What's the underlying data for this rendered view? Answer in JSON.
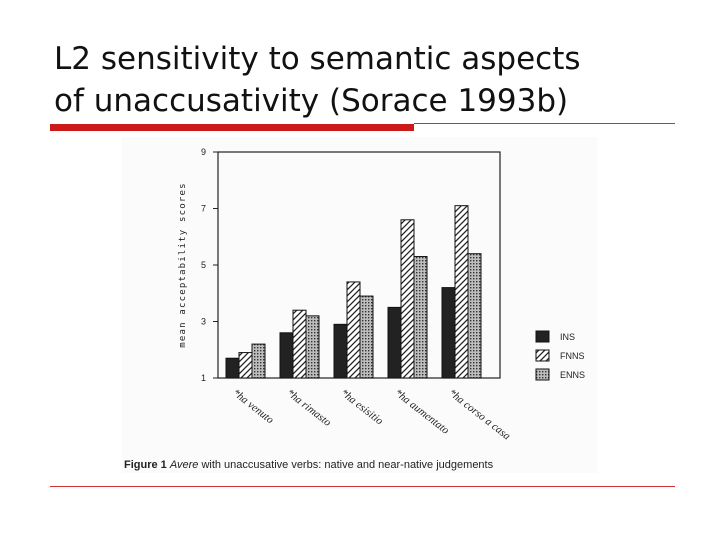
{
  "slide": {
    "title_line1": "L2 sensitivity to semantic aspects",
    "title_line2": "of unaccusativity (Sorace 1993b)",
    "accent_color": "#cc1a1a",
    "rule_color": "#cc3333"
  },
  "chart_data": {
    "type": "bar",
    "ylabel": "mean acceptability scores",
    "ylim": [
      1,
      9
    ],
    "yticks": [
      "1",
      "3",
      "5",
      "7",
      "9"
    ],
    "categories": [
      "*ha venuto",
      "*ha rimasto",
      "*ha esisitio",
      "*ha aumentato",
      "*ha corso a casa"
    ],
    "series": [
      {
        "name": "INS",
        "values": [
          1.7,
          2.6,
          2.9,
          3.5,
          4.2
        ],
        "fill": "solid"
      },
      {
        "name": "FNNS",
        "values": [
          1.9,
          3.4,
          4.4,
          6.6,
          7.1
        ],
        "fill": "hatch"
      },
      {
        "name": "ENNS",
        "values": [
          2.2,
          3.2,
          3.9,
          5.3,
          5.4
        ],
        "fill": "dots"
      }
    ],
    "legend_position": "right",
    "grid": false,
    "caption_label": "Figure 1",
    "caption_text": "Avere with unaccusative verbs: native and near-native judgements"
  }
}
